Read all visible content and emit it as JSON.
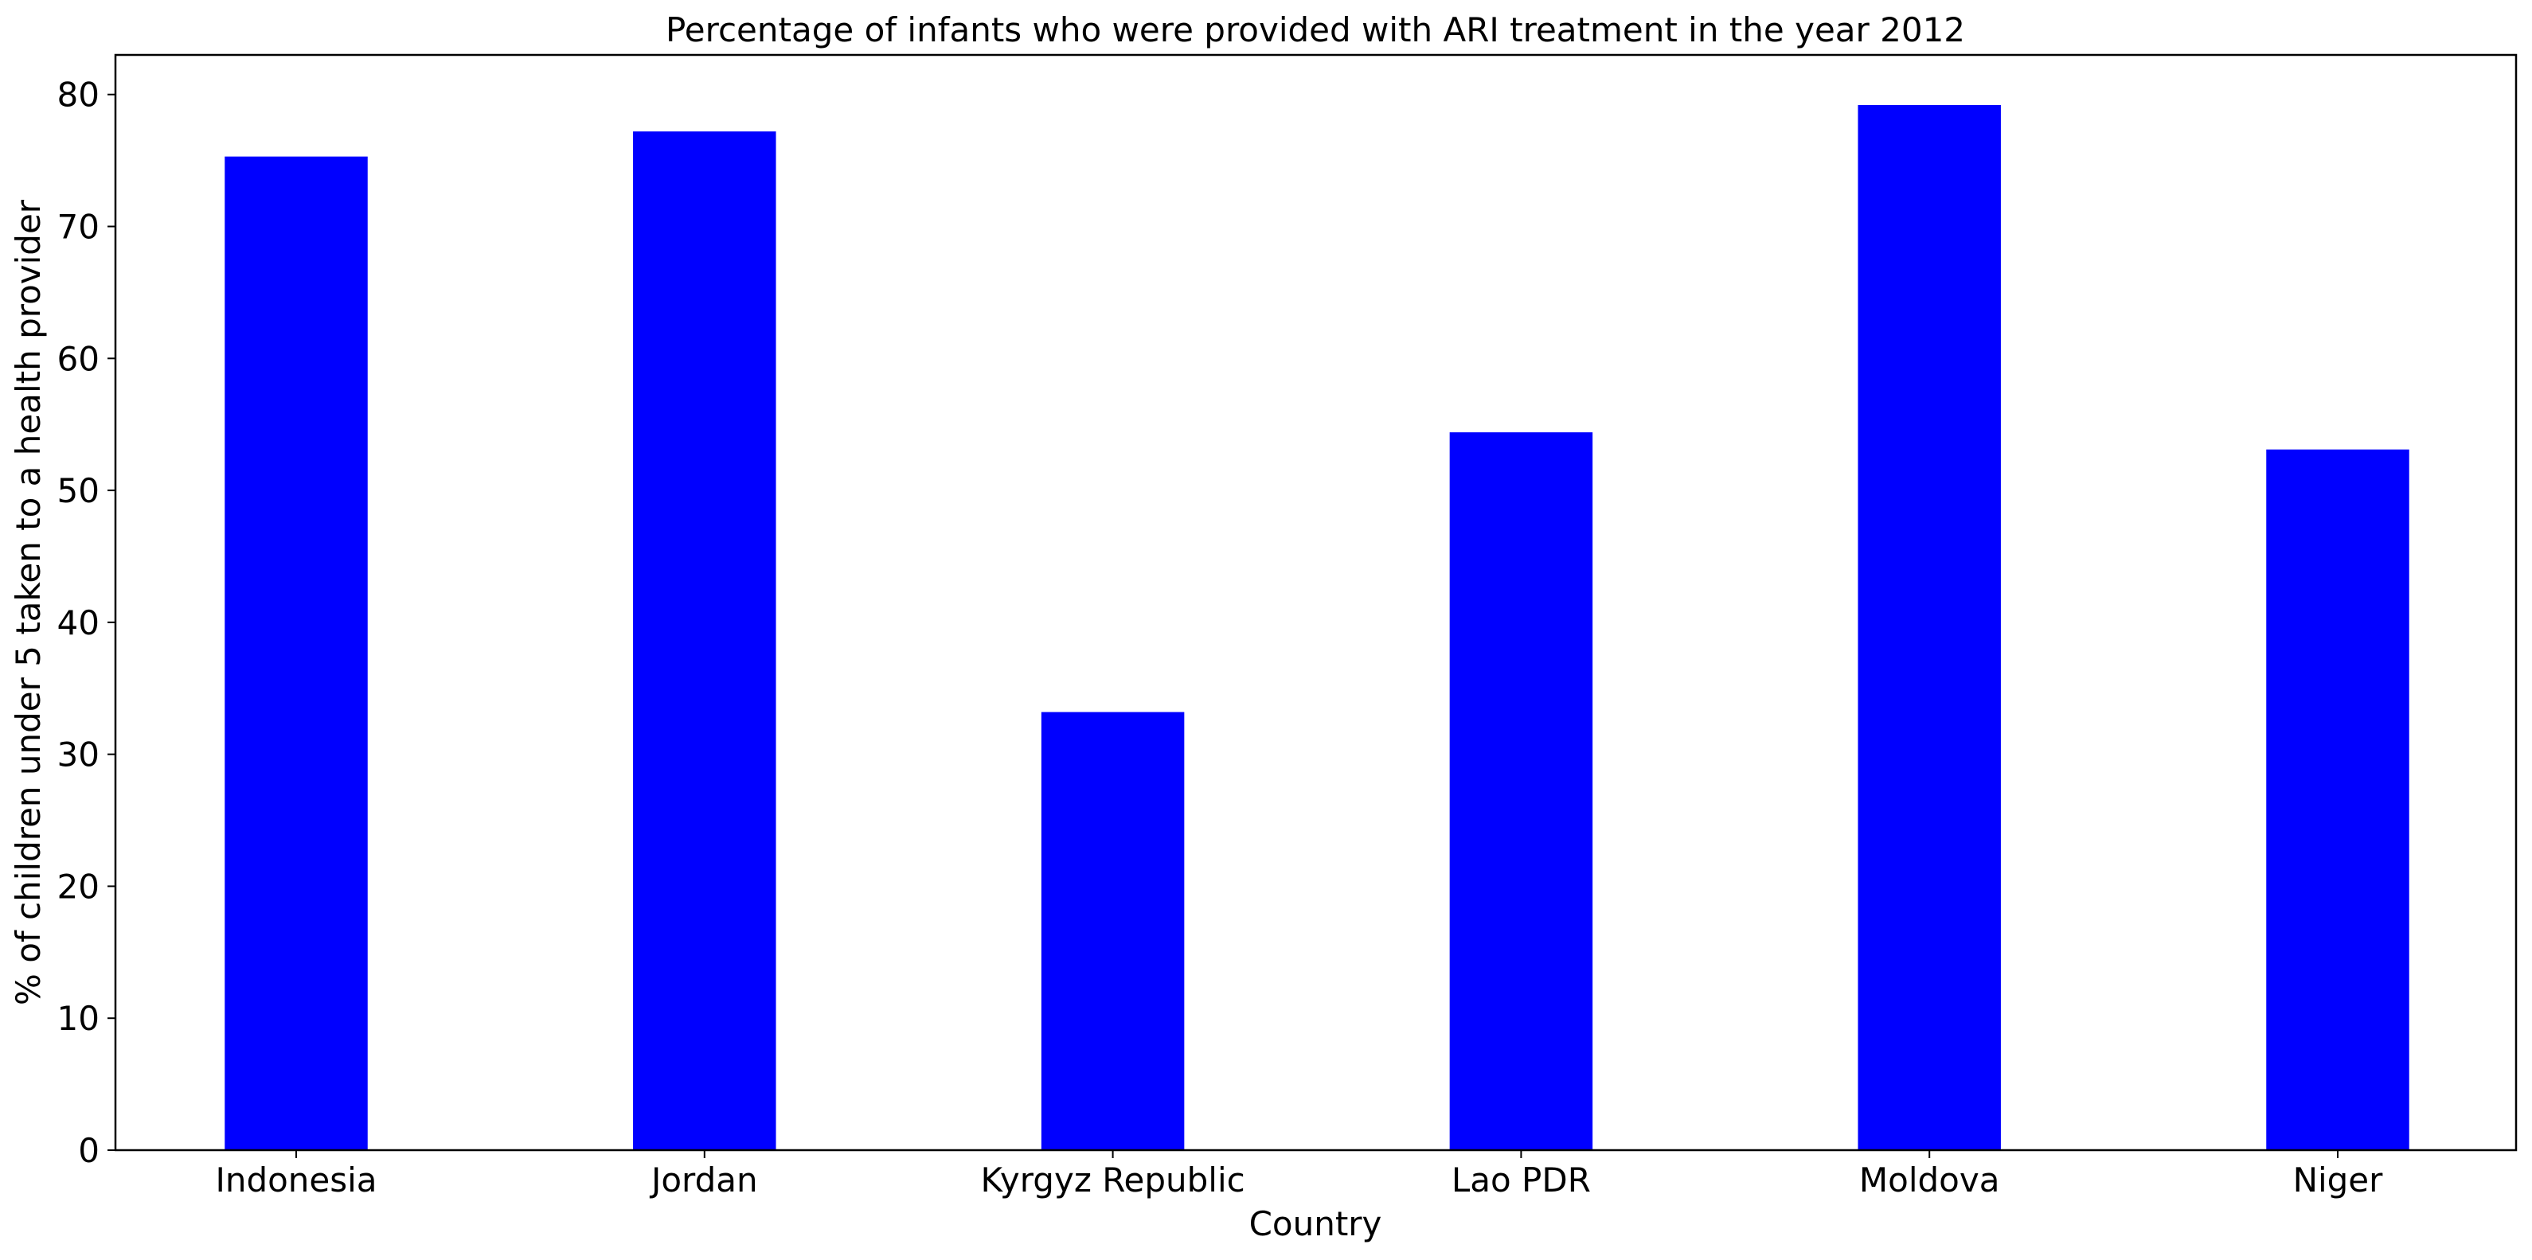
{
  "chart_data": {
    "type": "bar",
    "title": "Percentage of infants who were provided with ARI treatment in the year 2012",
    "xlabel": "Country",
    "ylabel": "% of children under 5 taken to a health provider",
    "categories": [
      "Indonesia",
      "Jordan",
      "Kyrgyz Republic",
      "Lao PDR",
      "Moldova",
      "Niger"
    ],
    "values": [
      75.3,
      77.2,
      33.2,
      54.4,
      79.2,
      53.1
    ],
    "ylim": [
      0,
      83
    ],
    "yticks": [
      0,
      10,
      20,
      30,
      40,
      50,
      60,
      70,
      80
    ],
    "grid": false,
    "legend": "none",
    "bar_color": "#0000ff"
  }
}
